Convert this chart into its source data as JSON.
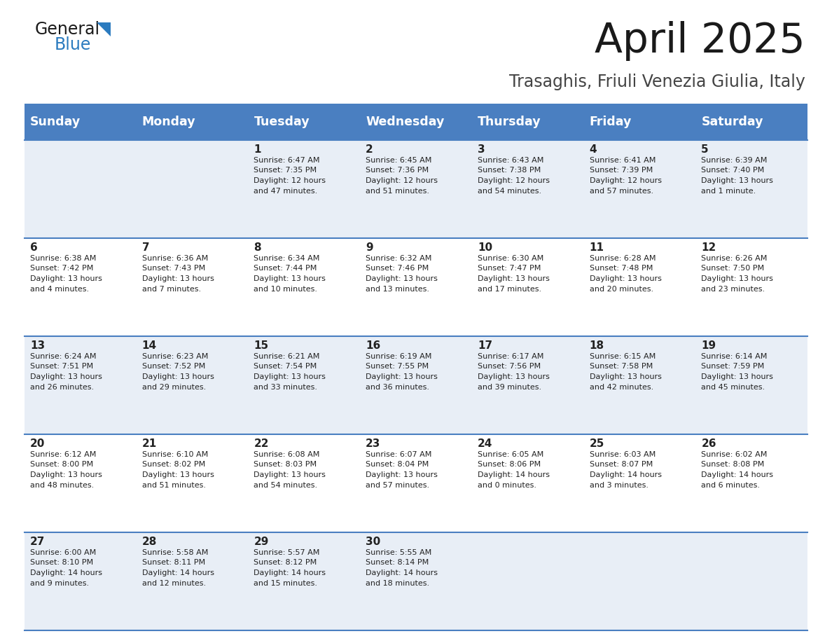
{
  "title": "April 2025",
  "subtitle": "Trasaghis, Friuli Venezia Giulia, Italy",
  "header_bg": "#4a7fc1",
  "header_text_color": "#ffffff",
  "row_bg_even": "#e8eef6",
  "row_bg_odd": "#ffffff",
  "cell_text_color": "#222222",
  "border_color": "#4a7fc1",
  "days_of_week": [
    "Sunday",
    "Monday",
    "Tuesday",
    "Wednesday",
    "Thursday",
    "Friday",
    "Saturday"
  ],
  "weeks": [
    [
      {
        "day": null,
        "sunrise": null,
        "sunset": null,
        "daylight": null
      },
      {
        "day": null,
        "sunrise": null,
        "sunset": null,
        "daylight": null
      },
      {
        "day": 1,
        "sunrise": "6:47 AM",
        "sunset": "7:35 PM",
        "daylight": "12 hours\nand 47 minutes."
      },
      {
        "day": 2,
        "sunrise": "6:45 AM",
        "sunset": "7:36 PM",
        "daylight": "12 hours\nand 51 minutes."
      },
      {
        "day": 3,
        "sunrise": "6:43 AM",
        "sunset": "7:38 PM",
        "daylight": "12 hours\nand 54 minutes."
      },
      {
        "day": 4,
        "sunrise": "6:41 AM",
        "sunset": "7:39 PM",
        "daylight": "12 hours\nand 57 minutes."
      },
      {
        "day": 5,
        "sunrise": "6:39 AM",
        "sunset": "7:40 PM",
        "daylight": "13 hours\nand 1 minute."
      }
    ],
    [
      {
        "day": 6,
        "sunrise": "6:38 AM",
        "sunset": "7:42 PM",
        "daylight": "13 hours\nand 4 minutes."
      },
      {
        "day": 7,
        "sunrise": "6:36 AM",
        "sunset": "7:43 PM",
        "daylight": "13 hours\nand 7 minutes."
      },
      {
        "day": 8,
        "sunrise": "6:34 AM",
        "sunset": "7:44 PM",
        "daylight": "13 hours\nand 10 minutes."
      },
      {
        "day": 9,
        "sunrise": "6:32 AM",
        "sunset": "7:46 PM",
        "daylight": "13 hours\nand 13 minutes."
      },
      {
        "day": 10,
        "sunrise": "6:30 AM",
        "sunset": "7:47 PM",
        "daylight": "13 hours\nand 17 minutes."
      },
      {
        "day": 11,
        "sunrise": "6:28 AM",
        "sunset": "7:48 PM",
        "daylight": "13 hours\nand 20 minutes."
      },
      {
        "day": 12,
        "sunrise": "6:26 AM",
        "sunset": "7:50 PM",
        "daylight": "13 hours\nand 23 minutes."
      }
    ],
    [
      {
        "day": 13,
        "sunrise": "6:24 AM",
        "sunset": "7:51 PM",
        "daylight": "13 hours\nand 26 minutes."
      },
      {
        "day": 14,
        "sunrise": "6:23 AM",
        "sunset": "7:52 PM",
        "daylight": "13 hours\nand 29 minutes."
      },
      {
        "day": 15,
        "sunrise": "6:21 AM",
        "sunset": "7:54 PM",
        "daylight": "13 hours\nand 33 minutes."
      },
      {
        "day": 16,
        "sunrise": "6:19 AM",
        "sunset": "7:55 PM",
        "daylight": "13 hours\nand 36 minutes."
      },
      {
        "day": 17,
        "sunrise": "6:17 AM",
        "sunset": "7:56 PM",
        "daylight": "13 hours\nand 39 minutes."
      },
      {
        "day": 18,
        "sunrise": "6:15 AM",
        "sunset": "7:58 PM",
        "daylight": "13 hours\nand 42 minutes."
      },
      {
        "day": 19,
        "sunrise": "6:14 AM",
        "sunset": "7:59 PM",
        "daylight": "13 hours\nand 45 minutes."
      }
    ],
    [
      {
        "day": 20,
        "sunrise": "6:12 AM",
        "sunset": "8:00 PM",
        "daylight": "13 hours\nand 48 minutes."
      },
      {
        "day": 21,
        "sunrise": "6:10 AM",
        "sunset": "8:02 PM",
        "daylight": "13 hours\nand 51 minutes."
      },
      {
        "day": 22,
        "sunrise": "6:08 AM",
        "sunset": "8:03 PM",
        "daylight": "13 hours\nand 54 minutes."
      },
      {
        "day": 23,
        "sunrise": "6:07 AM",
        "sunset": "8:04 PM",
        "daylight": "13 hours\nand 57 minutes."
      },
      {
        "day": 24,
        "sunrise": "6:05 AM",
        "sunset": "8:06 PM",
        "daylight": "14 hours\nand 0 minutes."
      },
      {
        "day": 25,
        "sunrise": "6:03 AM",
        "sunset": "8:07 PM",
        "daylight": "14 hours\nand 3 minutes."
      },
      {
        "day": 26,
        "sunrise": "6:02 AM",
        "sunset": "8:08 PM",
        "daylight": "14 hours\nand 6 minutes."
      }
    ],
    [
      {
        "day": 27,
        "sunrise": "6:00 AM",
        "sunset": "8:10 PM",
        "daylight": "14 hours\nand 9 minutes."
      },
      {
        "day": 28,
        "sunrise": "5:58 AM",
        "sunset": "8:11 PM",
        "daylight": "14 hours\nand 12 minutes."
      },
      {
        "day": 29,
        "sunrise": "5:57 AM",
        "sunset": "8:12 PM",
        "daylight": "14 hours\nand 15 minutes."
      },
      {
        "day": 30,
        "sunrise": "5:55 AM",
        "sunset": "8:14 PM",
        "daylight": "14 hours\nand 18 minutes."
      },
      {
        "day": null,
        "sunrise": null,
        "sunset": null,
        "daylight": null
      },
      {
        "day": null,
        "sunrise": null,
        "sunset": null,
        "daylight": null
      },
      {
        "day": null,
        "sunrise": null,
        "sunset": null,
        "daylight": null
      }
    ]
  ]
}
